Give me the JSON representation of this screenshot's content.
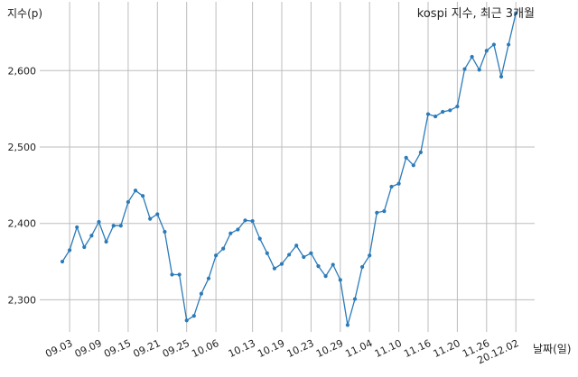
{
  "chart_data": {
    "type": "line",
    "title": "kospi 지수, 최근 3개월",
    "ylabel": "지수(p)",
    "xlabel": "날짜(일)",
    "ylim": [
      2258,
      2690
    ],
    "yticks": [
      2300,
      2400,
      2500,
      2600
    ],
    "ytick_labels": [
      "2,300",
      "2,400",
      "2,500",
      "2,600"
    ],
    "xticks": [
      {
        "index": 2,
        "label": "09.03"
      },
      {
        "index": 6,
        "label": "09.09"
      },
      {
        "index": 10,
        "label": "09.15"
      },
      {
        "index": 14,
        "label": "09.21"
      },
      {
        "index": 18,
        "label": "09.25"
      },
      {
        "index": 22,
        "label": "10.06"
      },
      {
        "index": 27,
        "label": "10.13"
      },
      {
        "index": 31,
        "label": "10.19"
      },
      {
        "index": 35,
        "label": "10.23"
      },
      {
        "index": 39,
        "label": "10.29"
      },
      {
        "index": 43,
        "label": "11.04"
      },
      {
        "index": 47,
        "label": "11.10"
      },
      {
        "index": 51,
        "label": "11.16"
      },
      {
        "index": 55,
        "label": "11.20"
      },
      {
        "index": 59,
        "label": "11.26"
      },
      {
        "index": 63,
        "label": "20.12.02"
      }
    ],
    "grid": true,
    "series": [
      {
        "color": "#2b7bb9",
        "values": [
          2350,
          2365,
          2395,
          2369,
          2384,
          2402,
          2376,
          2397,
          2397,
          2428,
          2443,
          2436,
          2406,
          2412,
          2389,
          2333,
          2333,
          2273,
          2279,
          2308,
          2328,
          2358,
          2367,
          2387,
          2392,
          2404,
          2403,
          2380,
          2361,
          2341,
          2347,
          2359,
          2371,
          2356,
          2361,
          2344,
          2331,
          2346,
          2326,
          2267,
          2301,
          2343,
          2358,
          2414,
          2416,
          2448,
          2452,
          2486,
          2476,
          2493,
          2543,
          2540,
          2546,
          2548,
          2553,
          2602,
          2618,
          2601,
          2626,
          2634,
          2592,
          2634,
          2675
        ]
      }
    ]
  }
}
